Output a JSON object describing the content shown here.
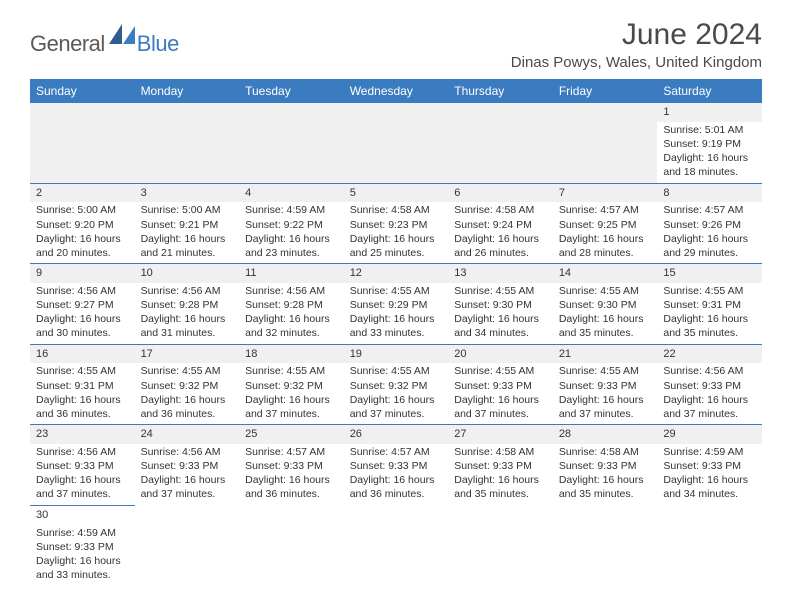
{
  "logo": {
    "part1": "General",
    "part2": "Blue"
  },
  "title": "June 2024",
  "location": "Dinas Powys, Wales, United Kingdom",
  "colors": {
    "header_bg": "#3b7bbf",
    "header_text": "#ffffff",
    "grey_bg": "#f0f0f0",
    "text": "#333333",
    "border": "#3b7bbf"
  },
  "weekdays": [
    "Sunday",
    "Monday",
    "Tuesday",
    "Wednesday",
    "Thursday",
    "Friday",
    "Saturday"
  ],
  "weeks": [
    [
      null,
      null,
      null,
      null,
      null,
      null,
      {
        "n": "1",
        "sr": "Sunrise: 5:01 AM",
        "ss": "Sunset: 9:19 PM",
        "dl": "Daylight: 16 hours and 18 minutes."
      }
    ],
    [
      {
        "n": "2",
        "sr": "Sunrise: 5:00 AM",
        "ss": "Sunset: 9:20 PM",
        "dl": "Daylight: 16 hours and 20 minutes."
      },
      {
        "n": "3",
        "sr": "Sunrise: 5:00 AM",
        "ss": "Sunset: 9:21 PM",
        "dl": "Daylight: 16 hours and 21 minutes."
      },
      {
        "n": "4",
        "sr": "Sunrise: 4:59 AM",
        "ss": "Sunset: 9:22 PM",
        "dl": "Daylight: 16 hours and 23 minutes."
      },
      {
        "n": "5",
        "sr": "Sunrise: 4:58 AM",
        "ss": "Sunset: 9:23 PM",
        "dl": "Daylight: 16 hours and 25 minutes."
      },
      {
        "n": "6",
        "sr": "Sunrise: 4:58 AM",
        "ss": "Sunset: 9:24 PM",
        "dl": "Daylight: 16 hours and 26 minutes."
      },
      {
        "n": "7",
        "sr": "Sunrise: 4:57 AM",
        "ss": "Sunset: 9:25 PM",
        "dl": "Daylight: 16 hours and 28 minutes."
      },
      {
        "n": "8",
        "sr": "Sunrise: 4:57 AM",
        "ss": "Sunset: 9:26 PM",
        "dl": "Daylight: 16 hours and 29 minutes."
      }
    ],
    [
      {
        "n": "9",
        "sr": "Sunrise: 4:56 AM",
        "ss": "Sunset: 9:27 PM",
        "dl": "Daylight: 16 hours and 30 minutes."
      },
      {
        "n": "10",
        "sr": "Sunrise: 4:56 AM",
        "ss": "Sunset: 9:28 PM",
        "dl": "Daylight: 16 hours and 31 minutes."
      },
      {
        "n": "11",
        "sr": "Sunrise: 4:56 AM",
        "ss": "Sunset: 9:28 PM",
        "dl": "Daylight: 16 hours and 32 minutes."
      },
      {
        "n": "12",
        "sr": "Sunrise: 4:55 AM",
        "ss": "Sunset: 9:29 PM",
        "dl": "Daylight: 16 hours and 33 minutes."
      },
      {
        "n": "13",
        "sr": "Sunrise: 4:55 AM",
        "ss": "Sunset: 9:30 PM",
        "dl": "Daylight: 16 hours and 34 minutes."
      },
      {
        "n": "14",
        "sr": "Sunrise: 4:55 AM",
        "ss": "Sunset: 9:30 PM",
        "dl": "Daylight: 16 hours and 35 minutes."
      },
      {
        "n": "15",
        "sr": "Sunrise: 4:55 AM",
        "ss": "Sunset: 9:31 PM",
        "dl": "Daylight: 16 hours and 35 minutes."
      }
    ],
    [
      {
        "n": "16",
        "sr": "Sunrise: 4:55 AM",
        "ss": "Sunset: 9:31 PM",
        "dl": "Daylight: 16 hours and 36 minutes."
      },
      {
        "n": "17",
        "sr": "Sunrise: 4:55 AM",
        "ss": "Sunset: 9:32 PM",
        "dl": "Daylight: 16 hours and 36 minutes."
      },
      {
        "n": "18",
        "sr": "Sunrise: 4:55 AM",
        "ss": "Sunset: 9:32 PM",
        "dl": "Daylight: 16 hours and 37 minutes."
      },
      {
        "n": "19",
        "sr": "Sunrise: 4:55 AM",
        "ss": "Sunset: 9:32 PM",
        "dl": "Daylight: 16 hours and 37 minutes."
      },
      {
        "n": "20",
        "sr": "Sunrise: 4:55 AM",
        "ss": "Sunset: 9:33 PM",
        "dl": "Daylight: 16 hours and 37 minutes."
      },
      {
        "n": "21",
        "sr": "Sunrise: 4:55 AM",
        "ss": "Sunset: 9:33 PM",
        "dl": "Daylight: 16 hours and 37 minutes."
      },
      {
        "n": "22",
        "sr": "Sunrise: 4:56 AM",
        "ss": "Sunset: 9:33 PM",
        "dl": "Daylight: 16 hours and 37 minutes."
      }
    ],
    [
      {
        "n": "23",
        "sr": "Sunrise: 4:56 AM",
        "ss": "Sunset: 9:33 PM",
        "dl": "Daylight: 16 hours and 37 minutes."
      },
      {
        "n": "24",
        "sr": "Sunrise: 4:56 AM",
        "ss": "Sunset: 9:33 PM",
        "dl": "Daylight: 16 hours and 37 minutes."
      },
      {
        "n": "25",
        "sr": "Sunrise: 4:57 AM",
        "ss": "Sunset: 9:33 PM",
        "dl": "Daylight: 16 hours and 36 minutes."
      },
      {
        "n": "26",
        "sr": "Sunrise: 4:57 AM",
        "ss": "Sunset: 9:33 PM",
        "dl": "Daylight: 16 hours and 36 minutes."
      },
      {
        "n": "27",
        "sr": "Sunrise: 4:58 AM",
        "ss": "Sunset: 9:33 PM",
        "dl": "Daylight: 16 hours and 35 minutes."
      },
      {
        "n": "28",
        "sr": "Sunrise: 4:58 AM",
        "ss": "Sunset: 9:33 PM",
        "dl": "Daylight: 16 hours and 35 minutes."
      },
      {
        "n": "29",
        "sr": "Sunrise: 4:59 AM",
        "ss": "Sunset: 9:33 PM",
        "dl": "Daylight: 16 hours and 34 minutes."
      }
    ],
    [
      {
        "n": "30",
        "sr": "Sunrise: 4:59 AM",
        "ss": "Sunset: 9:33 PM",
        "dl": "Daylight: 16 hours and 33 minutes.",
        "noBg": true
      },
      null,
      null,
      null,
      null,
      null,
      null
    ]
  ]
}
